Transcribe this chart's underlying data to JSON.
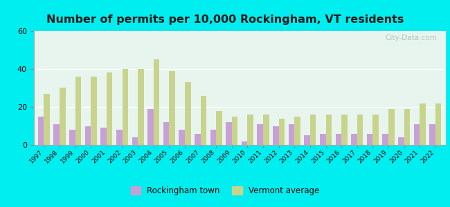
{
  "title": "Number of permits per 10,000 Rockingham, VT residents",
  "years": [
    1997,
    1998,
    1999,
    2000,
    2001,
    2002,
    2003,
    2004,
    2005,
    2006,
    2007,
    2008,
    2009,
    2010,
    2011,
    2012,
    2013,
    2014,
    2015,
    2016,
    2017,
    2018,
    2019,
    2020,
    2021,
    2022
  ],
  "rockingham": [
    15,
    11,
    8,
    10,
    9,
    8,
    4,
    19,
    12,
    8,
    6,
    8,
    12,
    2,
    11,
    10,
    11,
    5,
    6,
    6,
    6,
    6,
    6,
    4,
    11,
    11
  ],
  "vermont_avg": [
    27,
    30,
    36,
    36,
    38,
    40,
    40,
    45,
    39,
    33,
    26,
    18,
    15,
    16,
    16,
    14,
    15,
    16,
    16,
    16,
    16,
    16,
    19,
    19,
    22,
    22
  ],
  "rockingham_color": "#c8a0d8",
  "vermont_color": "#c8d48c",
  "background_color": "#e8f5ee",
  "outer_background": "#00eef0",
  "ylim": [
    0,
    60
  ],
  "yticks": [
    0,
    20,
    40,
    60
  ],
  "legend_rockingham": "Rockingham town",
  "legend_vermont": "Vermont average",
  "title_fontsize": 11.5
}
